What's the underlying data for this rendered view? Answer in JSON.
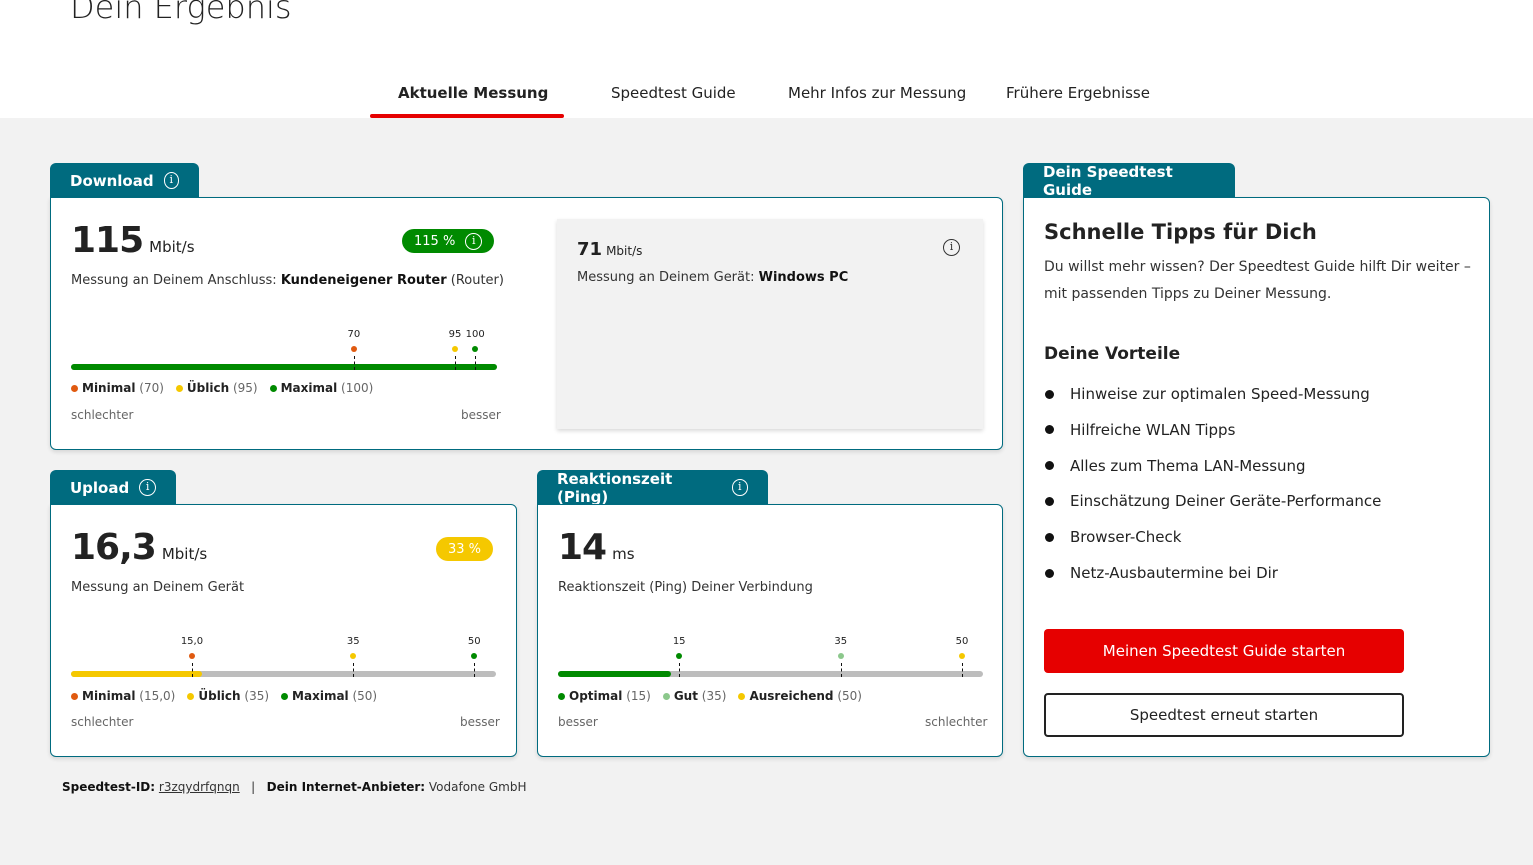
{
  "page": {
    "title": "Dein Ergebnis"
  },
  "tabs": [
    {
      "label": "Aktuelle Messung",
      "active": true
    },
    {
      "label": "Speedtest Guide"
    },
    {
      "label": "Mehr Infos zur Messung"
    },
    {
      "label": "Frühere Ergebnisse"
    }
  ],
  "download": {
    "label": "Download",
    "value": "115",
    "value_num": 115,
    "unit": "Mbit/s",
    "badge": "115 %",
    "badge_color": "#008a00",
    "desc_prefix": "Messung an Deinem Anschluss:",
    "desc_bold": "Kundeneigener Router",
    "desc_suffix": "(Router)",
    "markers": [
      {
        "label": "70",
        "value": 70,
        "color": "#e05a10"
      },
      {
        "label": "95",
        "value": 95,
        "color": "#f5c800"
      },
      {
        "label": "100",
        "value": 100,
        "color": "#008a00"
      }
    ],
    "legend": [
      {
        "name": "Minimal",
        "val": "(70)",
        "color": "#e05a10"
      },
      {
        "name": "Üblich",
        "val": "(95)",
        "color": "#f5c800"
      },
      {
        "name": "Maximal",
        "val": "(100)",
        "color": "#008a00"
      }
    ],
    "left": "schlechter",
    "right": "besser",
    "fill_color": "#008a00",
    "device": {
      "value": "71",
      "unit": "Mbit/s",
      "desc_prefix": "Messung an Deinem Gerät:",
      "desc_bold": "Windows PC"
    }
  },
  "upload": {
    "label": "Upload",
    "value": "16,3",
    "value_num": 16.3,
    "unit": "Mbit/s",
    "badge": "33 %",
    "badge_color": "#f5c800",
    "desc": "Messung an Deinem Gerät",
    "markers": [
      {
        "label": "15,0",
        "value": 15,
        "color": "#e05a10"
      },
      {
        "label": "35",
        "value": 35,
        "color": "#f5c800"
      },
      {
        "label": "50",
        "value": 50,
        "color": "#008a00"
      }
    ],
    "legend": [
      {
        "name": "Minimal",
        "val": "(15,0)",
        "color": "#e05a10"
      },
      {
        "name": "Üblich",
        "val": "(35)",
        "color": "#f5c800"
      },
      {
        "name": "Maximal",
        "val": "(50)",
        "color": "#008a00"
      }
    ],
    "left": "schlechter",
    "right": "besser",
    "fill_color": "#f5c800"
  },
  "ping": {
    "label": "Reaktionszeit (Ping)",
    "value": "14",
    "value_num": 14,
    "unit": "ms",
    "desc": "Reaktionszeit (Ping) Deiner Verbindung",
    "markers": [
      {
        "label": "15",
        "value": 15,
        "color": "#008a00"
      },
      {
        "label": "35",
        "value": 35,
        "color": "#8cc88c"
      },
      {
        "label": "50",
        "value": 50,
        "color": "#f5c800"
      }
    ],
    "legend": [
      {
        "name": "Optimal",
        "val": "(15)",
        "color": "#008a00"
      },
      {
        "name": "Gut",
        "val": "(35)",
        "color": "#8cc88c"
      },
      {
        "name": "Ausreichend",
        "val": "(50)",
        "color": "#f5c800"
      }
    ],
    "left": "besser",
    "right": "schlechter",
    "fill_color": "#008a00"
  },
  "guide": {
    "tab": "Dein Speedtest Guide",
    "heading": "Schnelle Tipps für Dich",
    "text1": "Du willst mehr wissen? Der Speedtest Guide hilft Dir weiter –",
    "text2": "mit passenden Tipps zu Deiner Messung.",
    "subheading": "Deine Vorteile",
    "items": [
      "Hinweise zur optimalen Speed-Messung",
      "Hilfreiche WLAN Tipps",
      "Alles zum Thema LAN-Messung",
      "Einschätzung Deiner Geräte-Performance",
      "Browser-Check",
      "Netz-Ausbautermine bei Dir"
    ],
    "primary_button": "Meinen Speedtest Guide starten",
    "secondary_button": "Speedtest erneut starten"
  },
  "footer": {
    "id_label": "Speedtest-ID:",
    "id_value": "r3zqydrfqnqn",
    "sep": "|",
    "provider_label": "Dein Internet-Anbieter:",
    "provider_value": "Vodafone GmbH"
  },
  "colors": {
    "teal": "#006b7f",
    "red": "#e60000"
  }
}
